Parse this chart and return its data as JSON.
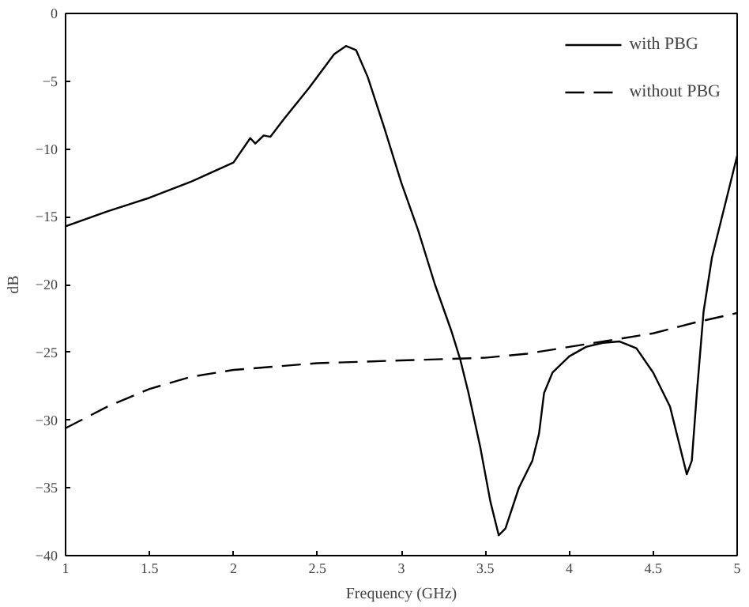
{
  "chart_data": {
    "type": "line",
    "xlabel": "Frequency (GHz)",
    "ylabel": "dB",
    "xlim": [
      1,
      5
    ],
    "ylim": [
      -40,
      0
    ],
    "xticks": [
      1,
      {
        "value": 1.5,
        "label": "1.5"
      },
      2,
      {
        "value": 2.5,
        "label": "2.5"
      },
      3,
      {
        "value": 3.5,
        "label": "3.5"
      },
      4,
      {
        "value": 4.5,
        "label": "4.5"
      },
      5
    ],
    "yticks": [
      -40,
      -35,
      -30,
      -25,
      -20,
      -15,
      -10,
      -5,
      0
    ],
    "grid": false,
    "legend": "top right",
    "marker": "none",
    "series": [
      {
        "name": "with PBG",
        "color": "#000000",
        "line_style": "solid",
        "x": [
          1,
          1.25,
          1.5,
          1.75,
          2,
          2.1,
          2.13,
          2.18,
          2.22,
          2.3,
          2.45,
          2.6,
          2.67,
          2.73,
          2.8,
          2.9,
          3,
          3.1,
          3.2,
          3.3,
          3.35,
          3.4,
          3.47,
          3.53,
          3.58,
          3.62,
          3.7,
          3.78,
          3.82,
          3.85,
          3.9,
          4,
          4.1,
          4.2,
          4.3,
          4.4,
          4.5,
          4.6,
          4.65,
          4.7,
          4.73,
          4.76,
          4.8,
          4.85,
          4.9,
          4.95,
          5
        ],
        "values": [
          -15.7,
          -14.6,
          -13.6,
          -12.4,
          -11,
          -9.2,
          -9.6,
          -9,
          -9.1,
          -7.8,
          -5.5,
          -3,
          -2.4,
          -2.7,
          -4.7,
          -8.5,
          -12.5,
          -16,
          -20,
          -23.5,
          -25.5,
          -28,
          -32,
          -36,
          -38.5,
          -38,
          -35,
          -33,
          -31,
          -28,
          -26.5,
          -25.3,
          -24.6,
          -24.3,
          -24.2,
          -24.7,
          -26.5,
          -29,
          -31.5,
          -34,
          -33,
          -28,
          -22,
          -18,
          -15.5,
          -13,
          -10.5
        ]
      },
      {
        "name": "without PBG",
        "color": "#000000",
        "line_style": "dashed",
        "x": [
          1,
          1.25,
          1.5,
          1.75,
          2,
          2.5,
          3,
          3.5,
          3.75,
          4,
          4.25,
          4.5,
          4.75,
          5
        ],
        "values": [
          -30.6,
          -29,
          -27.7,
          -26.8,
          -26.3,
          -25.8,
          -25.6,
          -25.4,
          -25.1,
          -24.6,
          -24.1,
          -23.6,
          -22.8,
          -22.1
        ]
      }
    ]
  }
}
